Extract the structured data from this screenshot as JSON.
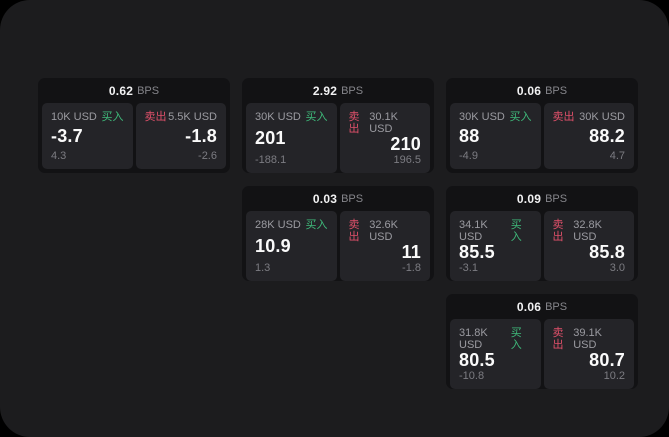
{
  "labels": {
    "bps_unit": "BPS",
    "buy": "买入",
    "sell": "卖出"
  },
  "colors": {
    "canvas-bg": "#1c1c1e",
    "card-bg": "#121214",
    "panel-bg": "#242428",
    "buy-green": "#3fbb7b",
    "sell-red": "#e0506a"
  },
  "cards": [
    {
      "row": 1,
      "col": 1,
      "bps": "0.62",
      "buy": {
        "amount": "10K USD",
        "price": "-3.7",
        "delta": "4.3"
      },
      "sell": {
        "amount": "5.5K USD",
        "price": "-1.8",
        "delta": "-2.6"
      }
    },
    {
      "row": 1,
      "col": 2,
      "bps": "2.92",
      "buy": {
        "amount": "30K USD",
        "price": "201",
        "delta": "-188.1"
      },
      "sell": {
        "amount": "30.1K USD",
        "price": "210",
        "delta": "196.5"
      }
    },
    {
      "row": 1,
      "col": 3,
      "bps": "0.06",
      "buy": {
        "amount": "30K USD",
        "price": "88",
        "delta": "-4.9"
      },
      "sell": {
        "amount": "30K USD",
        "price": "88.2",
        "delta": "4.7"
      }
    },
    {
      "row": 2,
      "col": 2,
      "bps": "0.03",
      "buy": {
        "amount": "28K USD",
        "price": "10.9",
        "delta": "1.3"
      },
      "sell": {
        "amount": "32.6K USD",
        "price": "11",
        "delta": "-1.8"
      }
    },
    {
      "row": 2,
      "col": 3,
      "bps": "0.09",
      "buy": {
        "amount": "34.1K USD",
        "price": "85.5",
        "delta": "-3.1"
      },
      "sell": {
        "amount": "32.8K USD",
        "price": "85.8",
        "delta": "3.0"
      }
    },
    {
      "row": 3,
      "col": 3,
      "bps": "0.06",
      "buy": {
        "amount": "31.8K USD",
        "price": "80.5",
        "delta": "-10.8"
      },
      "sell": {
        "amount": "39.1K USD",
        "price": "80.7",
        "delta": "10.2"
      }
    }
  ]
}
